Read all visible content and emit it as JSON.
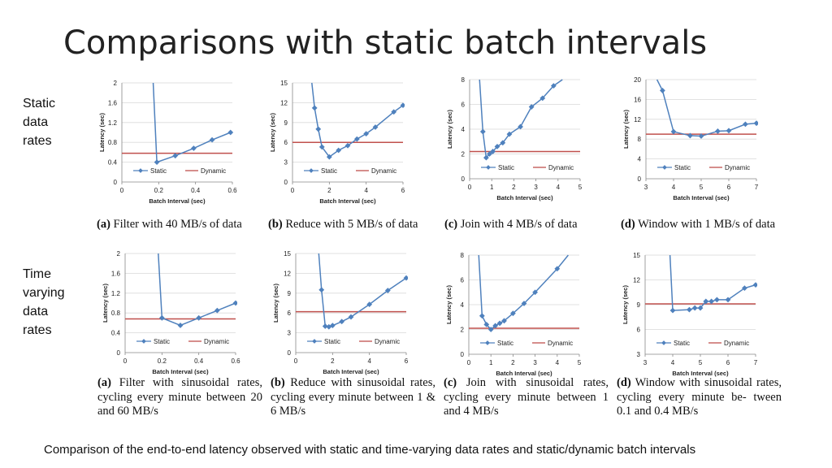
{
  "page": {
    "title": "Comparisons with static batch intervals",
    "side_labels": {
      "static": [
        "Static",
        "data",
        "rates"
      ],
      "varying": [
        "Time",
        "varying",
        "data",
        "rates"
      ]
    },
    "footer": "Comparison of the end-to-end latency observed with static and time-varying data rates and static/dynamic batch intervals",
    "colors": {
      "static": "#4f81bd",
      "dynamic": "#c0504d",
      "axis": "#888888",
      "grid": "#d9d9d9",
      "text": "#222222"
    }
  },
  "chart_data": [
    {
      "type": "line",
      "row": 0,
      "caption_tag": "(a)",
      "caption": "Filter with 40 MB/s of data",
      "xlabel": "Batch Interval (sec)",
      "ylabel": "Latency (sec)",
      "xlim": [
        0,
        0.6
      ],
      "ylim": [
        0,
        2
      ],
      "xticks": [
        "0",
        "0.2",
        "0.4",
        "0.6"
      ],
      "yticks": [
        "0",
        "0.4",
        "0.8",
        "1.2",
        "1.6",
        "2"
      ],
      "series": [
        {
          "name": "Static",
          "x": [
            0.17,
            0.19,
            0.29,
            0.39,
            0.49,
            0.59
          ],
          "y": [
            2.0,
            0.4,
            0.53,
            0.68,
            0.85,
            1.0
          ]
        },
        {
          "name": "Dynamic",
          "y_const": 0.58
        }
      ]
    },
    {
      "type": "line",
      "row": 0,
      "caption_tag": "(b)",
      "caption": "Reduce with 5 MB/s of data",
      "xlabel": "Batch Interval (sec)",
      "ylabel": "Latency (sec)",
      "xlim": [
        0,
        6
      ],
      "ylim": [
        0,
        15
      ],
      "xticks": [
        "0",
        "2",
        "4",
        "6"
      ],
      "yticks": [
        "0",
        "3",
        "6",
        "9",
        "12",
        "15"
      ],
      "series": [
        {
          "name": "Static",
          "x": [
            1.05,
            1.2,
            1.4,
            1.6,
            2.0,
            2.5,
            3.0,
            3.5,
            4.0,
            4.5,
            5.5,
            6.0
          ],
          "y": [
            15,
            11.2,
            8.0,
            5.3,
            3.8,
            4.8,
            5.5,
            6.5,
            7.3,
            8.3,
            10.6,
            11.6
          ]
        },
        {
          "name": "Dynamic",
          "y_const": 6.0
        }
      ]
    },
    {
      "type": "line",
      "row": 0,
      "caption_tag": "(c)",
      "caption": "Join with 4 MB/s of data",
      "xlabel": "Batch Interval (sec)",
      "ylabel": "Latency (sec)",
      "xlim": [
        0,
        5
      ],
      "ylim": [
        0,
        8
      ],
      "xticks": [
        "0",
        "1",
        "2",
        "3",
        "4",
        "5"
      ],
      "yticks": [
        "0",
        "2",
        "4",
        "6",
        "8"
      ],
      "series": [
        {
          "name": "Static",
          "x": [
            0.45,
            0.6,
            0.75,
            0.9,
            1.05,
            1.25,
            1.5,
            1.8,
            2.3,
            2.8,
            3.3,
            3.8,
            4.2
          ],
          "y": [
            8,
            3.8,
            1.7,
            2.0,
            2.2,
            2.6,
            2.9,
            3.6,
            4.2,
            5.8,
            6.5,
            7.5,
            8
          ]
        },
        {
          "name": "Dynamic",
          "y_const": 2.2
        }
      ]
    },
    {
      "type": "line",
      "row": 0,
      "caption_tag": "(d)",
      "caption": "Window with 1 MB/s of data",
      "xlabel": "Batch Interval (sec)",
      "ylabel": "Latency (sec)",
      "xlim": [
        3,
        7
      ],
      "ylim": [
        0,
        20
      ],
      "xticks": [
        "3",
        "4",
        "5",
        "6",
        "7"
      ],
      "yticks": [
        "0",
        "4",
        "8",
        "12",
        "16",
        "20"
      ],
      "series": [
        {
          "name": "Static",
          "x": [
            3.4,
            3.6,
            4.0,
            4.6,
            5.0,
            5.6,
            6.0,
            6.6,
            7.0
          ],
          "y": [
            20,
            17.8,
            9.5,
            8.7,
            8.6,
            9.6,
            9.7,
            11.0,
            11.2
          ]
        },
        {
          "name": "Dynamic",
          "y_const": 9.0
        }
      ]
    },
    {
      "type": "line",
      "row": 1,
      "caption_tag": "(a)",
      "caption": "Filter with sinusoidal rates, cycling every minute between 20 and 60 MB/s",
      "xlabel": "Batch Interval (sec)",
      "ylabel": "Latency (sec)",
      "xlim": [
        0,
        0.6
      ],
      "ylim": [
        0,
        2
      ],
      "xticks": [
        "0",
        "0.2",
        "0.4",
        "0.6"
      ],
      "yticks": [
        "0",
        "0.4",
        "0.8",
        "1.2",
        "1.6",
        "2"
      ],
      "series": [
        {
          "name": "Static",
          "x": [
            0.18,
            0.2,
            0.3,
            0.4,
            0.5,
            0.6
          ],
          "y": [
            2.0,
            0.7,
            0.55,
            0.7,
            0.85,
            1.0
          ]
        },
        {
          "name": "Dynamic",
          "y_const": 0.68
        }
      ]
    },
    {
      "type": "line",
      "row": 1,
      "caption_tag": "(b)",
      "caption": "Reduce with sinusoidal rates, cycling every minute between 1 & 6 MB/s",
      "xlabel": "Batch Interval (sec)",
      "ylabel": "Latency (sec)",
      "xlim": [
        0,
        6
      ],
      "ylim": [
        0,
        15
      ],
      "xticks": [
        "0",
        "2",
        "4",
        "6"
      ],
      "yticks": [
        "0",
        "3",
        "6",
        "9",
        "12",
        "15"
      ],
      "series": [
        {
          "name": "Static",
          "x": [
            1.25,
            1.4,
            1.6,
            1.8,
            2.0,
            2.5,
            3.0,
            4.0,
            5.0,
            6.0
          ],
          "y": [
            15,
            9.5,
            4.0,
            3.9,
            4.1,
            4.7,
            5.4,
            7.3,
            9.4,
            11.3
          ]
        },
        {
          "name": "Dynamic",
          "y_const": 6.2
        }
      ]
    },
    {
      "type": "line",
      "row": 1,
      "caption_tag": "(c)",
      "caption": "Join with sinusoidal rates, cycling every minute between 1 and 4 MB/s",
      "xlabel": "Batch Interval (sec)",
      "ylabel": "Latency (sec)",
      "xlim": [
        0,
        5
      ],
      "ylim": [
        0,
        8
      ],
      "xticks": [
        "0",
        "1",
        "2",
        "3",
        "4",
        "5"
      ],
      "yticks": [
        "0",
        "2",
        "4",
        "6",
        "8"
      ],
      "series": [
        {
          "name": "Static",
          "x": [
            0.45,
            0.6,
            0.8,
            1.0,
            1.2,
            1.4,
            1.6,
            2.0,
            2.5,
            3.0,
            4.0,
            4.5
          ],
          "y": [
            8,
            3.1,
            2.4,
            2.0,
            2.3,
            2.5,
            2.7,
            3.3,
            4.1,
            5.0,
            6.9,
            8
          ]
        },
        {
          "name": "Dynamic",
          "y_const": 2.1
        }
      ]
    },
    {
      "type": "line",
      "row": 1,
      "caption_tag": "(d)",
      "caption": "Window with sinusoidal rates, cycling every minute be- tween 0.1 and 0.4 MB/s",
      "xlabel": "Batch Interval (sec)",
      "ylabel": "Latency (sec)",
      "xlim": [
        3,
        7
      ],
      "ylim": [
        3,
        15
      ],
      "xticks": [
        "3",
        "4",
        "5",
        "6",
        "7"
      ],
      "yticks": [
        "3",
        "6",
        "9",
        "12",
        "15"
      ],
      "series": [
        {
          "name": "Static",
          "x": [
            3.9,
            4.0,
            4.6,
            4.8,
            5.0,
            5.2,
            5.4,
            5.6,
            6.0,
            6.6,
            7.0
          ],
          "y": [
            15,
            8.3,
            8.4,
            8.6,
            8.6,
            9.4,
            9.4,
            9.6,
            9.6,
            11.0,
            11.4
          ]
        },
        {
          "name": "Dynamic",
          "y_const": 9.1
        }
      ]
    }
  ]
}
